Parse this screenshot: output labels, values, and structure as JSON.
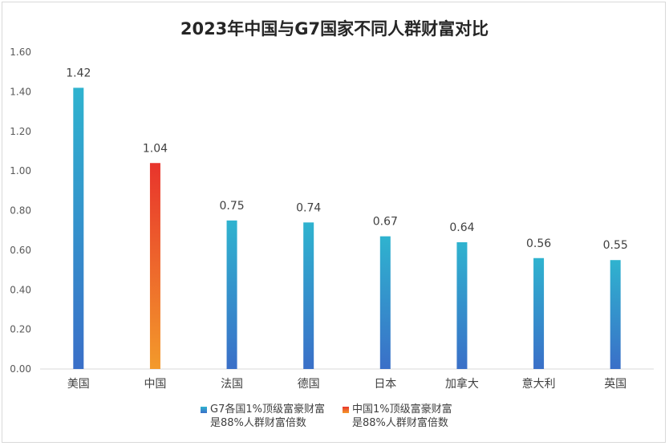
{
  "chart_data": {
    "type": "bar",
    "title": "2023年中国与G7国家不同人群财富对比",
    "categories": [
      "美国",
      "中国",
      "法国",
      "德国",
      "日本",
      "加拿大",
      "意大利",
      "英国"
    ],
    "values": [
      1.42,
      1.04,
      0.75,
      0.74,
      0.67,
      0.64,
      0.56,
      0.55
    ],
    "value_labels": [
      "1.42",
      "1.04",
      "0.75",
      "0.74",
      "0.67",
      "0.64",
      "0.56",
      "0.55"
    ],
    "highlight_index": 1,
    "ylim": [
      0,
      1.6
    ],
    "yticks": [
      "0.00",
      "0.20",
      "0.40",
      "0.60",
      "0.80",
      "1.00",
      "1.20",
      "1.40",
      "1.60"
    ],
    "grid": false,
    "legend_position": "bottom",
    "series": [
      {
        "name": "G7各国1%顶级富豪财富\n是88%人群财富倍数",
        "color_top": "#2fb3cf",
        "color_bottom": "#3a6fc8"
      },
      {
        "name": "中国1%顶级富豪财富\n是88%人群财富倍数",
        "color_top": "#e8342c",
        "color_bottom": "#f39a2b"
      }
    ]
  }
}
